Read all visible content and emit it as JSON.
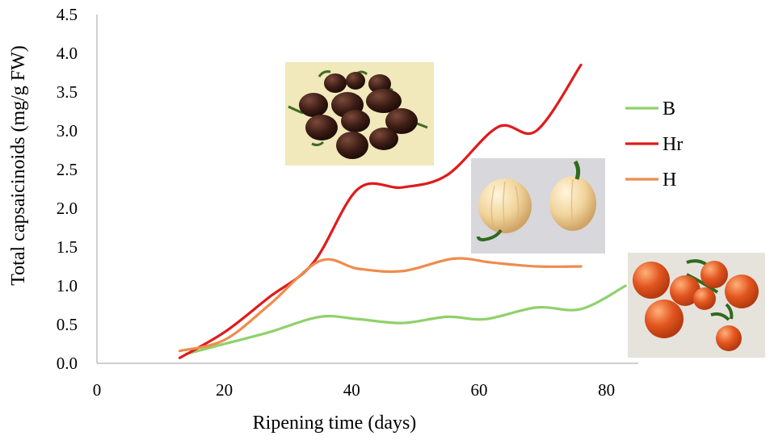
{
  "chart_data": {
    "type": "line",
    "title": "",
    "xlabel": "Ripening time (days)",
    "ylabel": "Total capsaicinoids (mg/g FW)",
    "xlim": [
      0,
      85
    ],
    "ylim": [
      0,
      4.5
    ],
    "x_ticks": [
      "0",
      "20",
      "40",
      "60",
      "80"
    ],
    "y_ticks": [
      "0.0",
      "0.5",
      "1.0",
      "1.5",
      "2.0",
      "2.5",
      "3.0",
      "3.5",
      "4.0",
      "4.5"
    ],
    "legend_position": "right",
    "series": [
      {
        "name": "B",
        "color": "#8fd16a",
        "x": [
          14,
          20,
          27,
          35,
          41,
          48,
          55,
          61,
          69,
          76,
          83
        ],
        "y": [
          0.12,
          0.25,
          0.4,
          0.6,
          0.57,
          0.52,
          0.6,
          0.57,
          0.72,
          0.7,
          1.0
        ]
      },
      {
        "name": "Hr",
        "color": "#e01b1b",
        "x": [
          13,
          20,
          27,
          34,
          41,
          48,
          55,
          63,
          69,
          76
        ],
        "y": [
          0.07,
          0.4,
          0.85,
          1.3,
          2.25,
          2.27,
          2.43,
          3.05,
          3.0,
          3.85
        ]
      },
      {
        "name": "H",
        "color": "#ef8c4c",
        "x": [
          13,
          20,
          27,
          35,
          41,
          48,
          56,
          62,
          69,
          76
        ],
        "y": [
          0.16,
          0.3,
          0.75,
          1.32,
          1.22,
          1.19,
          1.35,
          1.3,
          1.25,
          1.25
        ]
      }
    ]
  },
  "photos": {
    "hr_photo": "chocolate-habanero-peppers-photo",
    "h_photo": "pale-yellow-peppers-photo",
    "b_photo": "orange-round-peppers-photo"
  }
}
